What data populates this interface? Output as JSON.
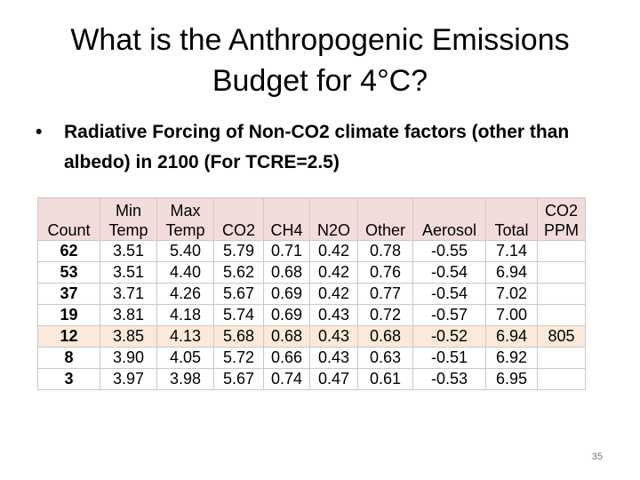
{
  "slide": {
    "title": "What is the Anthropogenic Emissions Budget for 4°C?",
    "bullet": "Radiative Forcing of Non-CO2 climate factors (other than albedo) in 2100 (For TCRE=2.5)",
    "page_number": "35",
    "table": {
      "header": [
        "Count",
        "Min Temp",
        "Max Temp",
        "CO2",
        "CH4",
        "N2O",
        "Other",
        "Aerosol",
        "Total",
        "CO2 PPM"
      ],
      "highlight_row": 4,
      "rows": [
        [
          "62",
          "3.51",
          "5.40",
          "5.79",
          "0.71",
          "0.42",
          "0.78",
          "-0.55",
          "7.14",
          null
        ],
        [
          "53",
          "3.51",
          "4.40",
          "5.62",
          "0.68",
          "0.42",
          "0.76",
          "-0.54",
          "6.94",
          null
        ],
        [
          "37",
          "3.71",
          "4.26",
          "5.67",
          "0.69",
          "0.42",
          "0.77",
          "-0.54",
          "7.02",
          null
        ],
        [
          "19",
          "3.81",
          "4.18",
          "5.74",
          "0.69",
          "0.43",
          "0.72",
          "-0.57",
          "7.00",
          null
        ],
        [
          "12",
          "3.85",
          "4.13",
          "5.68",
          "0.68",
          "0.43",
          "0.68",
          "-0.52",
          "6.94",
          "805"
        ],
        [
          "8",
          "3.90",
          "4.05",
          "5.72",
          "0.66",
          "0.43",
          "0.63",
          "-0.51",
          "6.92",
          null
        ],
        [
          "3",
          "3.97",
          "3.98",
          "5.67",
          "0.74",
          "0.47",
          "0.61",
          "-0.53",
          "6.95",
          null
        ]
      ]
    }
  }
}
